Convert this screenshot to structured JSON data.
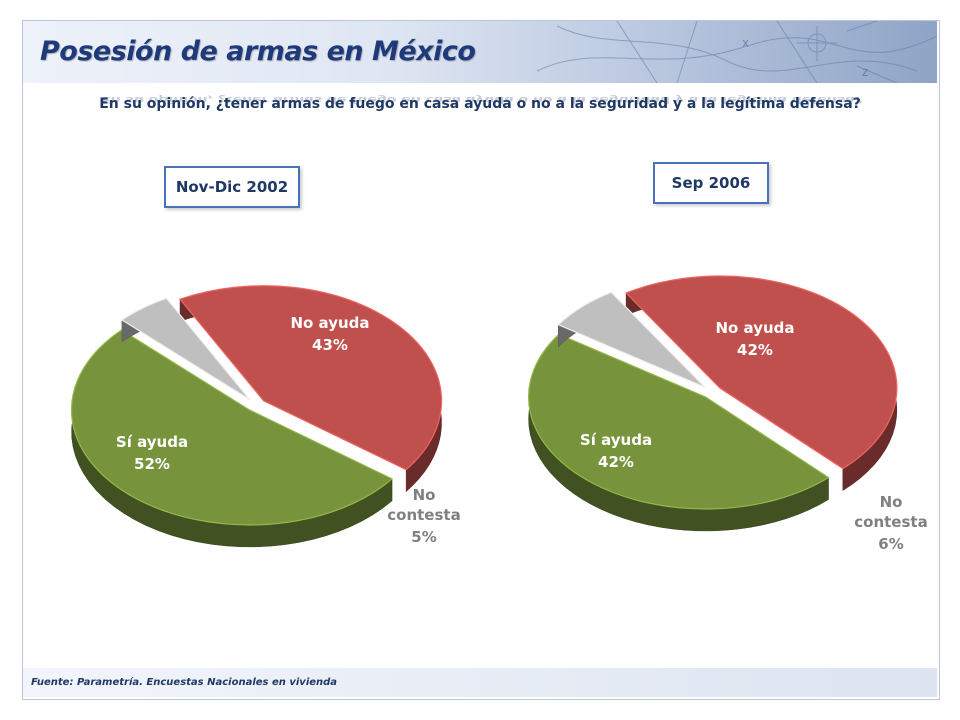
{
  "page": {
    "title": "Posesión de armas en México",
    "question": "En su opinión, ¿tener armas de fuego en casa ayuda o no a la seguridad y a la legítima defensa?",
    "source": "Fuente: Parametría. Encuestas Nacionales en vivienda"
  },
  "colors": {
    "no_ayuda": "#c0504d",
    "si_ayuda": "#77933c",
    "no_contesta": "#bfbfbf",
    "title": "#1f3a7a"
  },
  "chart_data": [
    {
      "type": "pie",
      "title": "Nov-Dic 2002",
      "categories": [
        "No ayuda",
        "Sí ayuda",
        "No contesta"
      ],
      "values": [
        43,
        52,
        5
      ],
      "value_labels": [
        "43%",
        "52%",
        "5%"
      ]
    },
    {
      "type": "pie",
      "title": "Sep 2006",
      "categories": [
        "No ayuda",
        "Sí ayuda",
        "No contesta"
      ],
      "values": [
        42,
        42,
        6
      ],
      "value_labels": [
        "42%",
        "42%",
        "6%"
      ]
    }
  ]
}
